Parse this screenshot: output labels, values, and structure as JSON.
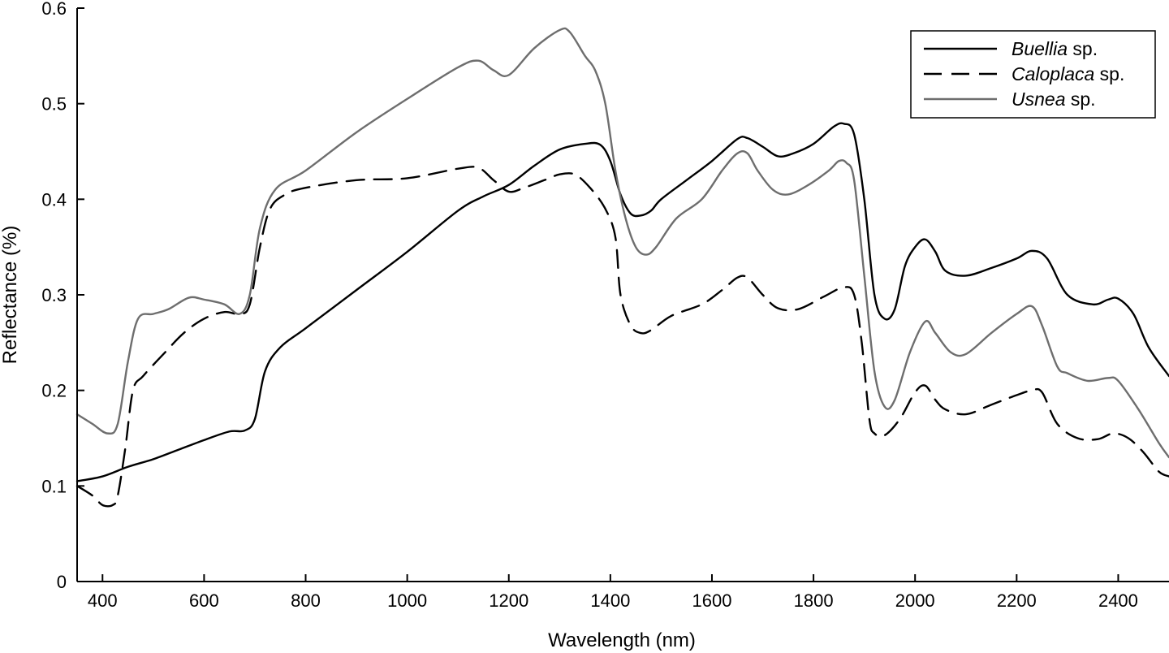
{
  "chart_data": {
    "type": "line",
    "title": "",
    "xlabel": "Wavelength (nm)",
    "ylabel": "Reflectance (%)",
    "xlim": [
      350,
      2500
    ],
    "ylim": [
      0,
      0.6
    ],
    "xticks": [
      400,
      600,
      800,
      1000,
      1200,
      1400,
      1600,
      1800,
      2000,
      2200,
      2400
    ],
    "yticks": [
      0,
      0.1,
      0.2,
      0.3,
      0.4,
      0.5,
      0.6
    ],
    "ytick_labels": [
      "0",
      "0.1",
      "0.2",
      "0.3",
      "0.4",
      "0.5",
      "0.6"
    ],
    "grid": false,
    "legend_position": "top-right",
    "series": [
      {
        "name": "Buellia sp.",
        "name_italic": "Buellia",
        "name_suffix": " sp.",
        "color": "#000000",
        "style": "solid",
        "x": [
          350,
          400,
          450,
          500,
          550,
          600,
          650,
          680,
          700,
          720,
          750,
          800,
          900,
          1000,
          1100,
          1150,
          1200,
          1250,
          1300,
          1350,
          1380,
          1400,
          1420,
          1440,
          1460,
          1480,
          1500,
          1550,
          1600,
          1650,
          1670,
          1700,
          1730,
          1760,
          1800,
          1840,
          1860,
          1880,
          1900,
          1920,
          1940,
          1960,
          1980,
          2000,
          2020,
          2040,
          2060,
          2100,
          2150,
          2200,
          2230,
          2260,
          2300,
          2350,
          2380,
          2400,
          2430,
          2460,
          2500
        ],
        "y": [
          0.105,
          0.11,
          0.12,
          0.128,
          0.138,
          0.148,
          0.157,
          0.158,
          0.17,
          0.22,
          0.245,
          0.265,
          0.305,
          0.345,
          0.388,
          0.403,
          0.415,
          0.435,
          0.452,
          0.458,
          0.457,
          0.44,
          0.405,
          0.385,
          0.383,
          0.388,
          0.4,
          0.42,
          0.44,
          0.463,
          0.464,
          0.455,
          0.445,
          0.448,
          0.458,
          0.476,
          0.479,
          0.468,
          0.4,
          0.3,
          0.275,
          0.285,
          0.33,
          0.35,
          0.358,
          0.345,
          0.325,
          0.32,
          0.328,
          0.338,
          0.346,
          0.338,
          0.3,
          0.29,
          0.295,
          0.296,
          0.28,
          0.245,
          0.215
        ]
      },
      {
        "name": "Caloplaca sp.",
        "name_italic": "Caloplaca",
        "name_suffix": " sp.",
        "color": "#000000",
        "style": "dashed",
        "x": [
          350,
          380,
          400,
          420,
          430,
          445,
          460,
          480,
          520,
          560,
          600,
          640,
          670,
          690,
          710,
          730,
          760,
          800,
          900,
          1000,
          1100,
          1140,
          1170,
          1200,
          1230,
          1270,
          1300,
          1330,
          1360,
          1390,
          1410,
          1420,
          1440,
          1460,
          1480,
          1520,
          1580,
          1620,
          1650,
          1670,
          1700,
          1730,
          1770,
          1820,
          1860,
          1880,
          1895,
          1910,
          1920,
          1940,
          1970,
          2000,
          2020,
          2040,
          2060,
          2100,
          2150,
          2200,
          2230,
          2250,
          2280,
          2320,
          2360,
          2390,
          2420,
          2450,
          2480,
          2500
        ],
        "y": [
          0.1,
          0.09,
          0.08,
          0.08,
          0.09,
          0.14,
          0.2,
          0.215,
          0.238,
          0.26,
          0.275,
          0.282,
          0.28,
          0.29,
          0.35,
          0.39,
          0.405,
          0.412,
          0.42,
          0.422,
          0.432,
          0.433,
          0.42,
          0.408,
          0.412,
          0.42,
          0.426,
          0.426,
          0.412,
          0.39,
          0.36,
          0.3,
          0.268,
          0.26,
          0.263,
          0.278,
          0.29,
          0.305,
          0.318,
          0.318,
          0.3,
          0.286,
          0.285,
          0.298,
          0.308,
          0.3,
          0.25,
          0.17,
          0.155,
          0.153,
          0.17,
          0.198,
          0.205,
          0.19,
          0.18,
          0.175,
          0.185,
          0.195,
          0.2,
          0.198,
          0.165,
          0.15,
          0.149,
          0.155,
          0.15,
          0.135,
          0.115,
          0.11
        ]
      },
      {
        "name": "Usnea sp.",
        "name_italic": "Usnea",
        "name_suffix": "  sp.",
        "color": "#6e6e6e",
        "style": "solid",
        "x": [
          350,
          380,
          410,
          430,
          450,
          470,
          500,
          530,
          570,
          600,
          640,
          670,
          690,
          710,
          740,
          800,
          900,
          1000,
          1100,
          1140,
          1170,
          1200,
          1250,
          1300,
          1320,
          1350,
          1370,
          1390,
          1410,
          1430,
          1450,
          1470,
          1490,
          1530,
          1580,
          1620,
          1650,
          1670,
          1690,
          1720,
          1750,
          1790,
          1830,
          1850,
          1865,
          1880,
          1900,
          1920,
          1940,
          1960,
          1990,
          2020,
          2040,
          2070,
          2100,
          2150,
          2200,
          2230,
          2250,
          2280,
          2300,
          2340,
          2380,
          2400,
          2440,
          2480,
          2500
        ],
        "y": [
          0.175,
          0.165,
          0.155,
          0.165,
          0.23,
          0.275,
          0.28,
          0.285,
          0.297,
          0.295,
          0.29,
          0.28,
          0.3,
          0.37,
          0.41,
          0.43,
          0.47,
          0.505,
          0.538,
          0.545,
          0.535,
          0.53,
          0.558,
          0.577,
          0.575,
          0.55,
          0.535,
          0.5,
          0.43,
          0.38,
          0.35,
          0.342,
          0.35,
          0.38,
          0.4,
          0.43,
          0.448,
          0.448,
          0.43,
          0.41,
          0.405,
          0.415,
          0.43,
          0.44,
          0.438,
          0.42,
          0.32,
          0.22,
          0.183,
          0.19,
          0.24,
          0.272,
          0.26,
          0.24,
          0.238,
          0.26,
          0.28,
          0.288,
          0.268,
          0.225,
          0.218,
          0.21,
          0.213,
          0.21,
          0.18,
          0.145,
          0.13
        ]
      }
    ]
  }
}
